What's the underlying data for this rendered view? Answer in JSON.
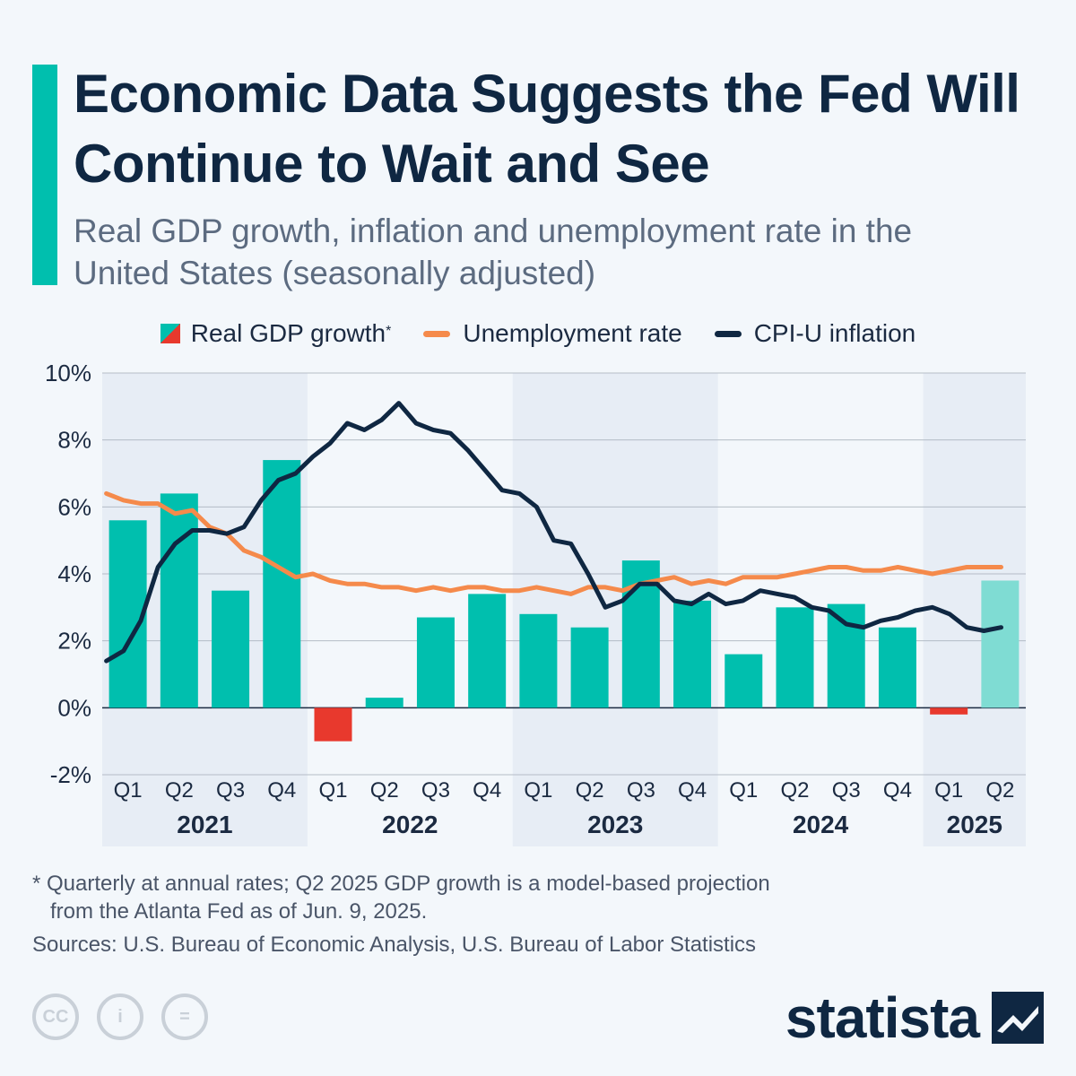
{
  "header": {
    "title": "Economic Data Suggests the Fed Will Continue to Wait and See",
    "subtitle": "Real GDP growth, inflation and unemployment rate in the United States (seasonally adjusted)"
  },
  "legend": {
    "gdp_label": "Real GDP growth",
    "gdp_mark": "*",
    "unemployment_label": "Unemployment rate",
    "cpi_label": "CPI-U inflation"
  },
  "colors": {
    "accent": "#00bfae",
    "gdp_positive": "#00bfae",
    "gdp_negative": "#e8392d",
    "gdp_projection": "#7fdcd3",
    "unemployment": "#f58a4b",
    "cpi": "#0f2742",
    "band": "#e7edf5",
    "grid": "#b4bcc6"
  },
  "chart_data": {
    "type": "bar+line",
    "title": "Economic Data Suggests the Fed Will Continue to Wait and See",
    "ylim": [
      -2,
      10
    ],
    "yticks": [
      -2,
      0,
      2,
      4,
      6,
      8,
      10
    ],
    "ytick_labels": [
      "-2%",
      "0%",
      "2%",
      "4%",
      "6%",
      "8%",
      "10%"
    ],
    "categories": [
      "Q1",
      "Q2",
      "Q3",
      "Q4",
      "Q1",
      "Q2",
      "Q3",
      "Q4",
      "Q1",
      "Q2",
      "Q3",
      "Q4",
      "Q1",
      "Q2",
      "Q3",
      "Q4",
      "Q1",
      "Q2"
    ],
    "years": [
      {
        "label": "2021",
        "quarters": 4
      },
      {
        "label": "2022",
        "quarters": 4
      },
      {
        "label": "2023",
        "quarters": 4
      },
      {
        "label": "2024",
        "quarters": 4
      },
      {
        "label": "2025",
        "quarters": 2
      }
    ],
    "gdp": {
      "name": "Real GDP growth",
      "values": [
        5.6,
        6.4,
        3.5,
        7.4,
        -1.0,
        0.3,
        2.7,
        3.4,
        2.8,
        2.4,
        4.4,
        3.2,
        1.6,
        3.0,
        3.1,
        2.4,
        -0.2,
        3.8
      ],
      "projected_index": 17
    },
    "unemployment": {
      "name": "Unemployment rate",
      "values": [
        6.4,
        6.2,
        6.1,
        6.1,
        5.8,
        5.9,
        5.4,
        5.2,
        4.7,
        4.5,
        4.2,
        3.9,
        4.0,
        3.8,
        3.7,
        3.7,
        3.6,
        3.6,
        3.5,
        3.6,
        3.5,
        3.6,
        3.6,
        3.5,
        3.5,
        3.6,
        3.5,
        3.4,
        3.6,
        3.6,
        3.5,
        3.7,
        3.8,
        3.9,
        3.7,
        3.8,
        3.7,
        3.9,
        3.9,
        3.9,
        4.0,
        4.1,
        4.2,
        4.2,
        4.1,
        4.1,
        4.2,
        4.1,
        4.0,
        4.1,
        4.2,
        4.2,
        4.2
      ]
    },
    "cpi": {
      "name": "CPI-U inflation",
      "values": [
        1.4,
        1.7,
        2.6,
        4.2,
        4.9,
        5.3,
        5.3,
        5.2,
        5.4,
        6.2,
        6.8,
        7.0,
        7.5,
        7.9,
        8.5,
        8.3,
        8.6,
        9.1,
        8.5,
        8.3,
        8.2,
        7.7,
        7.1,
        6.5,
        6.4,
        6.0,
        5.0,
        4.9,
        4.0,
        3.0,
        3.2,
        3.7,
        3.7,
        3.2,
        3.1,
        3.4,
        3.1,
        3.2,
        3.5,
        3.4,
        3.3,
        3.0,
        2.9,
        2.5,
        2.4,
        2.6,
        2.7,
        2.9,
        3.0,
        2.8,
        2.4,
        2.3,
        2.4
      ]
    }
  },
  "footnote": {
    "line1": "* Quarterly at annual rates; Q2 2025 GDP growth is a model-based projection",
    "line2": "from the Atlanta Fed as of Jun. 9, 2025."
  },
  "sources": "Sources: U.S. Bureau of Economic Analysis, U.S. Bureau of Labor Statistics",
  "license": {
    "cc": "CC",
    "by": "i",
    "nd": "="
  },
  "brand": "statista"
}
